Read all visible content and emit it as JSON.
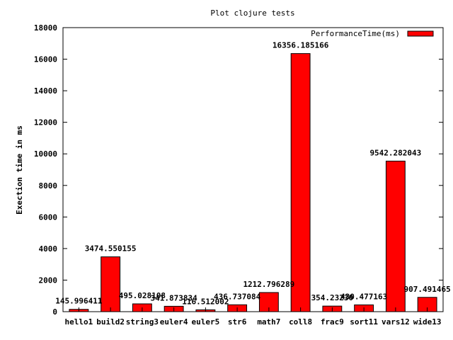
{
  "chart_data": {
    "type": "bar",
    "title": "Plot clojure tests",
    "xlabel": "",
    "ylabel": "Exection time in ms",
    "ylim": [
      0,
      18000
    ],
    "yticks": [
      0,
      2000,
      4000,
      6000,
      8000,
      10000,
      12000,
      14000,
      16000,
      18000
    ],
    "legend_position": "top-right",
    "bar_color": "#ff0000",
    "categories": [
      "hello1",
      "build2",
      "string3",
      "euler4",
      "euler5",
      "str6",
      "math7",
      "coll8",
      "frac9",
      "sort11",
      "vars12",
      "wide13"
    ],
    "series": [
      {
        "name": "PerformanceTime(ms)",
        "values": [
          145.996411,
          3474.550155,
          495.028108,
          341.873834,
          116.512002,
          436.737084,
          1212.796289,
          16356.185166,
          354.2323,
          430.477163,
          9542.282043,
          907.491465
        ]
      }
    ],
    "data_labels": [
      "145.996411",
      "3474.550155",
      "495.028108",
      "341.873834",
      "116.512002",
      "436.737084",
      "1212.796289",
      "16356.185166",
      "354.23230",
      "430.477163",
      "9542.282043",
      "907.491465"
    ]
  }
}
